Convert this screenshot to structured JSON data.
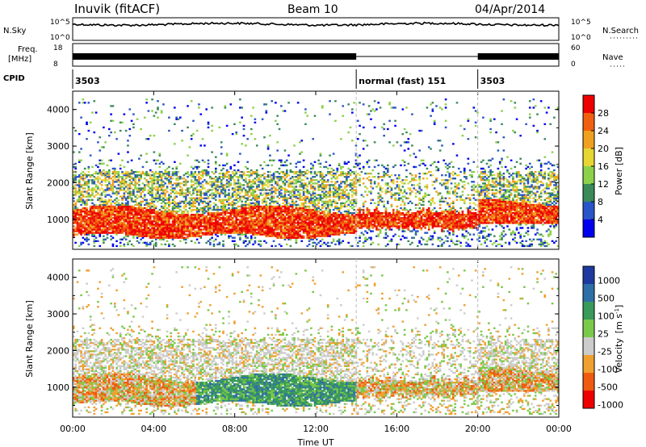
{
  "header": {
    "station": "Inuvik (fitACF)",
    "beam": "Beam 10",
    "date": "04/Apr/2014"
  },
  "top_panels": {
    "nsky_label": "N.Sky",
    "nsky_ticks": [
      "10^5",
      "10^0"
    ],
    "nsearch_label": "N.Search",
    "nsearch_ticks": [
      "10^5",
      "10^0"
    ],
    "freq_label_line1": "Freq.",
    "freq_label_line2": "[MHz]",
    "freq_ticks": [
      "18",
      "8"
    ],
    "nave_label": "Nave",
    "nave_ticks": [
      "60",
      "0"
    ],
    "cpid_label": "CPID",
    "cpid_segments": [
      {
        "label": "3503",
        "start_hour": 0
      },
      {
        "label": "normal (fast) 151",
        "start_hour": 14
      },
      {
        "label": "3503",
        "start_hour": 20
      }
    ]
  },
  "axes": {
    "xlabel": "Time UT",
    "x_ticks": [
      "00:00",
      "04:00",
      "08:00",
      "12:00",
      "16:00",
      "20:00",
      "00:00"
    ],
    "x_tick_hours": [
      0,
      4,
      8,
      12,
      16,
      20,
      24
    ],
    "ylabel": "Slant Range [km]",
    "y_ticks": [
      "4000",
      "3000",
      "2000",
      "1000"
    ],
    "y_tick_values": [
      4000,
      3000,
      2000,
      1000
    ],
    "mode_change_hours": [
      14,
      20
    ]
  },
  "power_colorbar": {
    "label": "Power [dB]",
    "ticks": [
      "28",
      "24",
      "20",
      "16",
      "12",
      "8",
      "4"
    ],
    "colors": [
      "#0000ee",
      "#2a55c8",
      "#3a8a5a",
      "#8cd14a",
      "#e6d633",
      "#f0a020",
      "#f06010",
      "#ee0000"
    ]
  },
  "velocity_colorbar": {
    "label_text": "Velocity",
    "label_unit": "[m s",
    "label_exp": "-1",
    "label_close": "]",
    "ticks": [
      "1000",
      "500",
      "100",
      "25",
      "-25",
      "-100",
      "-500",
      "-1000"
    ],
    "colors": [
      "#ee0000",
      "#f05a10",
      "#f0a030",
      "#cccccc",
      "#7bc94a",
      "#3a9a5a",
      "#2f6fa8",
      "#1e3aa0"
    ]
  },
  "chart_data": [
    {
      "type": "heatmap",
      "title": "",
      "xlabel": "",
      "ylabel": "Slant Range [km]",
      "xlim": [
        0,
        24
      ],
      "ylim": [
        180,
        4500
      ],
      "colorbar": "Power [dB]",
      "clim": [
        0,
        30
      ],
      "bands": [
        {
          "start_hour": 0,
          "end_hour": 24,
          "range_low": 500,
          "range_high": 1300,
          "level_db": 26
        },
        {
          "start_hour": 0,
          "end_hour": 14,
          "range_low": 1300,
          "range_high": 2200,
          "level_db": 14
        },
        {
          "start_hour": 20,
          "end_hour": 24,
          "range_low": 900,
          "range_high": 1500,
          "level_db": 26
        }
      ]
    },
    {
      "type": "heatmap",
      "title": "",
      "xlabel": "Time UT",
      "ylabel": "Slant Range [km]",
      "xlim": [
        0,
        24
      ],
      "ylim": [
        180,
        4500
      ],
      "colorbar": "Velocity [m s-1]",
      "clim": [
        -1000,
        1000
      ],
      "bands": [
        {
          "start_hour": 0,
          "end_hour": 24,
          "range_low": 500,
          "range_high": 1200,
          "velocity": -200
        },
        {
          "start_hour": 6,
          "end_hour": 14,
          "range_low": 600,
          "range_high": 1400,
          "velocity": 150
        },
        {
          "start_hour": 10,
          "end_hour": 24,
          "range_low": 1300,
          "range_high": 2200,
          "velocity": 0
        }
      ]
    }
  ]
}
